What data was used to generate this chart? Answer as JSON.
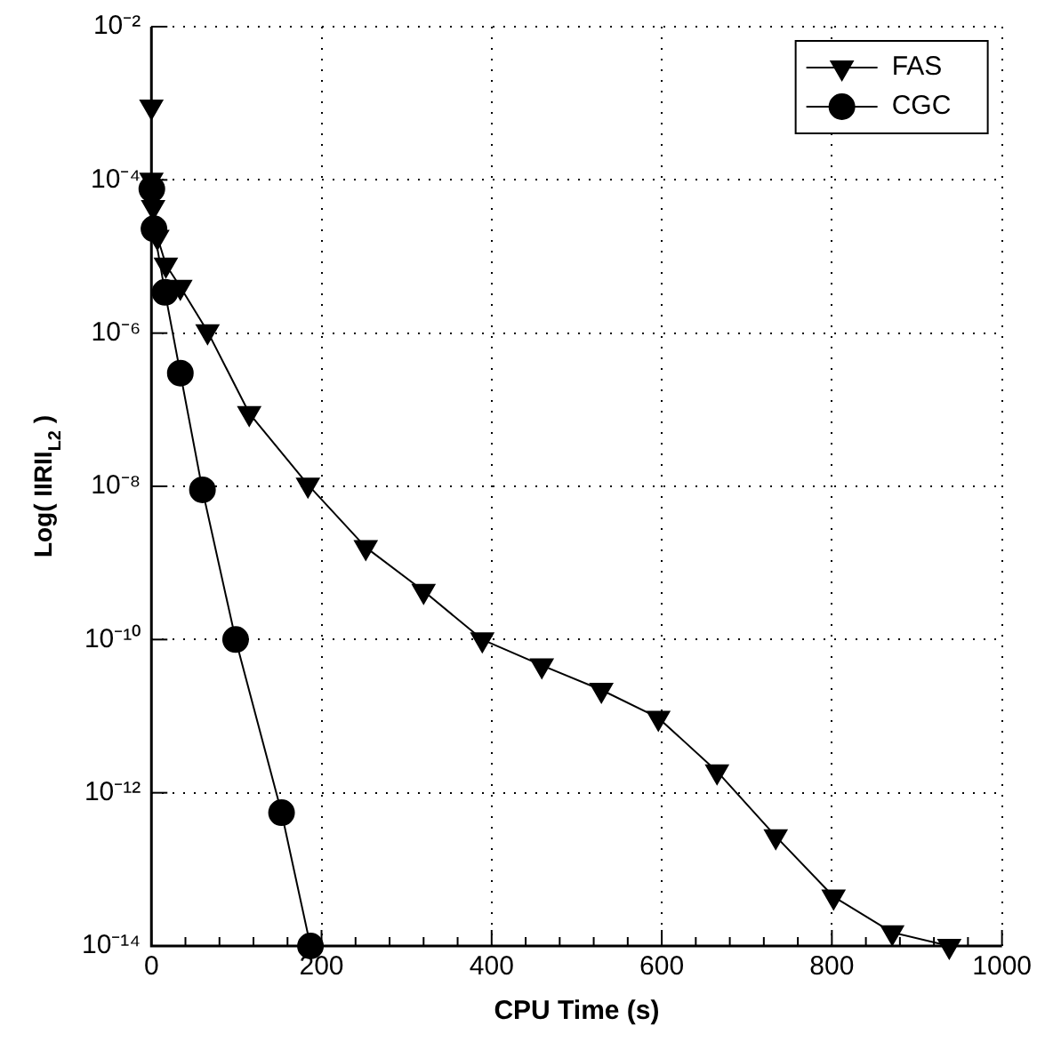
{
  "chart_data": {
    "type": "line",
    "xlabel": "CPU Time (s)",
    "ylabel": "Log( IIRII$_{L2}$ )",
    "log": "y",
    "grid": true,
    "legend": "top right",
    "xlim": [
      0,
      1000
    ],
    "xticks": [
      0,
      200,
      400,
      600,
      800,
      1000
    ],
    "ylim": [
      1e-14,
      0.01
    ],
    "yticks": [
      {
        "value": 0.01,
        "label": "10⁻²"
      },
      {
        "value": 0.0001,
        "label": "10⁻⁴"
      },
      {
        "value": 1e-06,
        "label": "10⁻⁶"
      },
      {
        "value": 1e-08,
        "label": "10⁻⁸"
      },
      {
        "value": 1e-10,
        "label": "10⁻¹⁰"
      },
      {
        "value": 1e-12,
        "label": "10⁻¹²"
      },
      {
        "value": 1e-14,
        "label": "10⁻¹⁴"
      }
    ],
    "series": [
      {
        "name": "FAS",
        "color": "#000000",
        "marker": "triangle",
        "x": [
          0,
          0,
          2,
          7,
          17,
          34,
          66,
          115,
          184,
          252,
          320,
          389,
          459,
          529,
          596,
          665,
          734,
          802,
          871,
          938
        ],
        "values": [
          0.0009,
          0.0001,
          4.4e-05,
          1.8e-05,
          7.8e-06,
          4e-06,
          1.05e-06,
          9e-08,
          1.05e-08,
          1.6e-09,
          4.3e-10,
          1e-10,
          4.6e-11,
          2.2e-11,
          9.5e-12,
          1.9e-12,
          2.7e-13,
          4.4e-14,
          1.5e-14,
          1e-14
        ]
      },
      {
        "name": "CGC",
        "color": "#000000",
        "marker": "circle",
        "x": [
          0.5,
          3,
          16,
          34,
          60,
          99,
          153,
          187
        ],
        "values": [
          7.6e-05,
          2.3e-05,
          3.4e-06,
          3e-07,
          9e-09,
          1e-10,
          5.5e-13,
          1e-14
        ]
      }
    ]
  }
}
